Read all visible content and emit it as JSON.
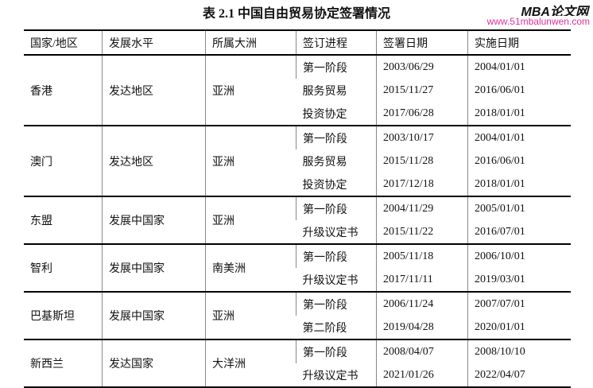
{
  "title": "表 2.1 中国自由贸易协定签署情况",
  "headers": [
    "国家/地区",
    "发展水平",
    "所属大洲",
    "签订进程",
    "签署日期",
    "实施日期"
  ],
  "groups": [
    {
      "region": "香港",
      "level": "发达地区",
      "continent": "亚洲",
      "rows": [
        [
          "第一阶段",
          "2003/06/29",
          "2004/01/01"
        ],
        [
          "服务贸易",
          "2015/11/27",
          "2016/06/01"
        ],
        [
          "投资协定",
          "2017/06/28",
          "2018/01/01"
        ]
      ]
    },
    {
      "region": "澳门",
      "level": "发达地区",
      "continent": "亚洲",
      "rows": [
        [
          "第一阶段",
          "2003/10/17",
          "2004/01/01"
        ],
        [
          "服务贸易",
          "2015/11/28",
          "2016/06/01"
        ],
        [
          "投资协定",
          "2017/12/18",
          "2018/01/01"
        ]
      ]
    },
    {
      "region": "东盟",
      "level": "发展中国家",
      "continent": "亚洲",
      "rows": [
        [
          "第一阶段",
          "2004/11/29",
          "2005/01/01"
        ],
        [
          "升级议定书",
          "2015/11/22",
          "2016/07/01"
        ]
      ]
    },
    {
      "region": "智利",
      "level": "发展中国家",
      "continent": "南美洲",
      "rows": [
        [
          "第一阶段",
          "2005/11/18",
          "2006/10/01"
        ],
        [
          "升级议定书",
          "2017/11/11",
          "2019/03/01"
        ]
      ]
    },
    {
      "region": "巴基斯坦",
      "level": "发展中国家",
      "continent": "亚洲",
      "rows": [
        [
          "第一阶段",
          "2006/11/24",
          "2007/07/01"
        ],
        [
          "第二阶段",
          "2019/04/28",
          "2020/01/01"
        ]
      ]
    },
    {
      "region": "新西兰",
      "level": "发达国家",
      "continent": "大洋洲",
      "rows": [
        [
          "第一阶段",
          "2008/04/07",
          "2008/10/10"
        ],
        [
          "升级议定书",
          "2021/01/26",
          "2022/04/07"
        ]
      ]
    }
  ],
  "watermark": {
    "logo": "MBA论文网",
    "url": "www.51mbalunwen.com"
  }
}
